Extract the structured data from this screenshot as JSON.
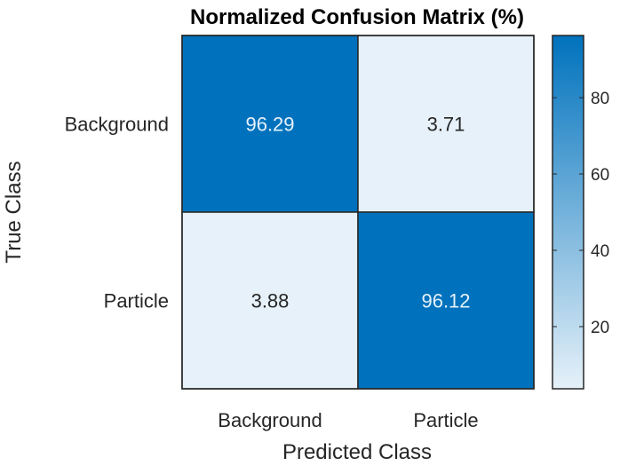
{
  "chart_data": {
    "type": "heatmap",
    "title": "Normalized Confusion Matrix (%)",
    "xlabel": "Predicted Class",
    "ylabel": "True Class",
    "x_categories": [
      "Background",
      "Particle"
    ],
    "y_categories": [
      "Background",
      "Particle"
    ],
    "values": [
      [
        96.29,
        3.71
      ],
      [
        3.88,
        96.12
      ]
    ],
    "colorbar": {
      "range": [
        3.71,
        96.29
      ],
      "ticks": [
        20,
        40,
        60,
        80
      ],
      "colors": [
        "#e6f1f9",
        "#0072bd"
      ]
    },
    "grid": false,
    "legend": "none"
  }
}
